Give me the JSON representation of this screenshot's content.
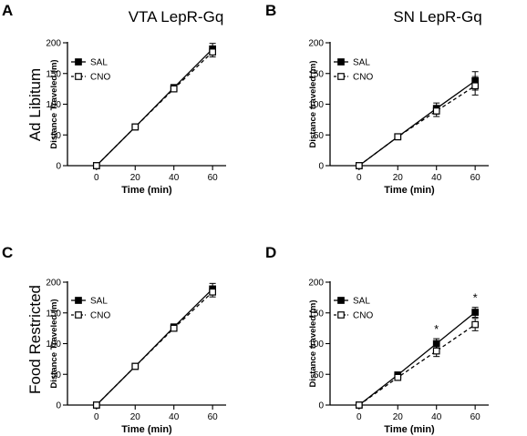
{
  "figure": {
    "column_titles": [
      "VTA LepR-Gq",
      "SN LepR-Gq"
    ],
    "row_titles": [
      "Ad Libitum",
      "Food Restricted"
    ]
  },
  "chart_data": [
    {
      "type": "line",
      "panel": "A",
      "title": "VTA LepR-Gq",
      "xlabel": "Time (min)",
      "ylabel": "Distance Traveled (m)",
      "x": [
        0,
        20,
        40,
        60
      ],
      "xlim": [
        -15,
        67
      ],
      "ylim": [
        0,
        200
      ],
      "xticks": [
        0,
        20,
        40,
        60
      ],
      "yticks": [
        0,
        50,
        100,
        150,
        200
      ],
      "legend": "top-left",
      "series": [
        {
          "name": "SAL",
          "marker": "filled-square",
          "line": "solid",
          "values": [
            0,
            63,
            127,
            190
          ],
          "errors": [
            0,
            2,
            5,
            9
          ]
        },
        {
          "name": "CNO",
          "marker": "open-square",
          "line": "dashed",
          "values": [
            0,
            63,
            125,
            185
          ],
          "errors": [
            0,
            2,
            5,
            8
          ]
        }
      ],
      "significance": []
    },
    {
      "type": "line",
      "panel": "B",
      "title": "SN LepR-Gq",
      "xlabel": "Time (min)",
      "ylabel": "Distance traveled (m)",
      "x": [
        0,
        20,
        40,
        60
      ],
      "xlim": [
        -15,
        67
      ],
      "ylim": [
        0,
        200
      ],
      "xticks": [
        0,
        20,
        40,
        60
      ],
      "yticks": [
        0,
        50,
        100,
        150,
        200
      ],
      "legend": "top-left",
      "series": [
        {
          "name": "SAL",
          "marker": "filled-square",
          "line": "solid",
          "values": [
            0,
            47,
            93,
            138
          ],
          "errors": [
            0,
            3,
            9,
            15
          ]
        },
        {
          "name": "CNO",
          "marker": "open-square",
          "line": "dashed",
          "values": [
            0,
            47,
            89,
            130
          ],
          "errors": [
            0,
            3,
            9,
            15
          ]
        }
      ],
      "significance": []
    },
    {
      "type": "line",
      "panel": "C",
      "title": "",
      "xlabel": "Time (min)",
      "ylabel": "Distance Traveled (m)",
      "x": [
        0,
        20,
        40,
        60
      ],
      "xlim": [
        -15,
        67
      ],
      "ylim": [
        0,
        200
      ],
      "xticks": [
        0,
        20,
        40,
        60
      ],
      "yticks": [
        0,
        50,
        100,
        150,
        200
      ],
      "legend": "top-left",
      "series": [
        {
          "name": "SAL",
          "marker": "filled-square",
          "line": "solid",
          "values": [
            0,
            63,
            127,
            189
          ],
          "errors": [
            0,
            2,
            5,
            9
          ]
        },
        {
          "name": "CNO",
          "marker": "open-square",
          "line": "dashed",
          "values": [
            0,
            63,
            125,
            184
          ],
          "errors": [
            0,
            2,
            5,
            8
          ]
        }
      ],
      "significance": []
    },
    {
      "type": "line",
      "panel": "D",
      "title": "",
      "xlabel": "Time (min)",
      "ylabel": "Distance traveled (m)",
      "x": [
        0,
        20,
        40,
        60
      ],
      "xlim": [
        -15,
        67
      ],
      "ylim": [
        0,
        200
      ],
      "xticks": [
        0,
        20,
        40,
        60
      ],
      "yticks": [
        0,
        50,
        100,
        150,
        200
      ],
      "legend": "top-left",
      "series": [
        {
          "name": "SAL",
          "marker": "filled-square",
          "line": "solid",
          "values": [
            0,
            49,
            100,
            151
          ],
          "errors": [
            0,
            3,
            8,
            8
          ]
        },
        {
          "name": "CNO",
          "marker": "open-square",
          "line": "dashed",
          "values": [
            0,
            45,
            88,
            131
          ],
          "errors": [
            0,
            3,
            9,
            10
          ]
        }
      ],
      "significance": [
        {
          "x": 40,
          "label": "*"
        },
        {
          "x": 60,
          "label": "*"
        }
      ]
    }
  ]
}
